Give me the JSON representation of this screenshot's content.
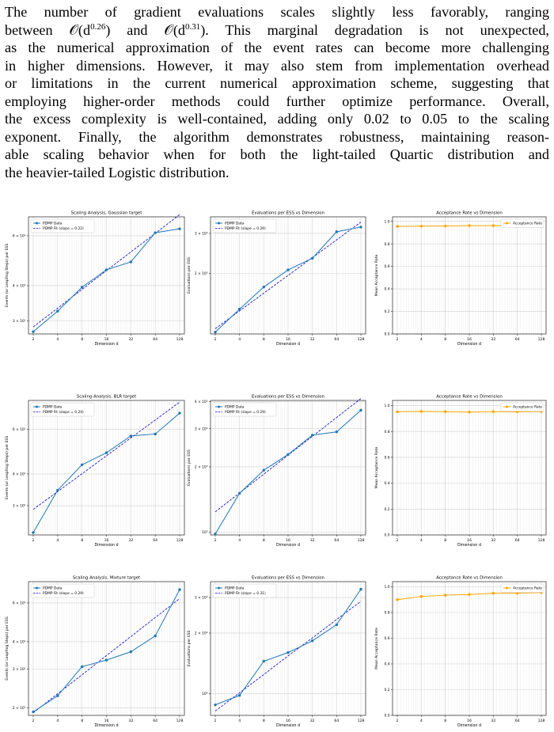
{
  "paragraph": {
    "lines": [
      {
        "parts": [
          {
            "t": "The number of gradient evaluations scales slightly less favorably, ranging"
          }
        ]
      },
      {
        "parts": [
          {
            "t": "between 𝒪(d"
          },
          {
            "sup": "0.26"
          },
          {
            "t": ") and 𝒪(d"
          },
          {
            "sup": "0.31"
          },
          {
            "t": "). This marginal degradation is not unexpected,"
          }
        ]
      },
      {
        "parts": [
          {
            "t": "as the numerical approximation of the event rates can become more challenging"
          }
        ]
      },
      {
        "parts": [
          {
            "t": "in higher dimensions. However, it may also stem from implementation overhead"
          }
        ]
      },
      {
        "parts": [
          {
            "t": "or limitations in the current numerical approximation scheme, suggesting that"
          }
        ]
      },
      {
        "parts": [
          {
            "t": "employing higher-order methods could further optimize performance. Overall,"
          }
        ]
      },
      {
        "parts": [
          {
            "t": "the excess complexity is well-contained, adding only 0.02 to 0.05 to the scaling"
          }
        ]
      },
      {
        "parts": [
          {
            "t": "exponent. Finally, the algorithm demonstrates robustness, maintaining reason-"
          }
        ]
      },
      {
        "parts": [
          {
            "t": "able scaling behavior when for both the light-tailed Quartic distribution and"
          }
        ]
      },
      {
        "parts": [
          {
            "t": "the heavier-tailed Logistic distribution."
          }
        ]
      }
    ]
  },
  "colors": {
    "series": "#1f77b4",
    "fit": "#0000cc",
    "acceptance": "#ffa500",
    "grid": "#d0d0d0"
  },
  "chart_data": [
    {
      "type": "line",
      "title": "Scaling Analysis, Gaussian target",
      "xlabel": "Dimension d",
      "ylabel": "Events (or Leapfrog Steps) per ESS",
      "xscale": "log2",
      "yscale": "log",
      "x": [
        2,
        4,
        8,
        16,
        32,
        64,
        128
      ],
      "ylim": [
        27,
        70
      ],
      "yticks": [
        {
          "v": 30,
          "label": "3 × 10¹"
        },
        {
          "v": 40,
          "label": "4 × 10¹"
        },
        {
          "v": 60,
          "label": "6 × 10¹"
        }
      ],
      "series": [
        {
          "name": "PDMP Data",
          "values": [
            27.5,
            32.5,
            39.5,
            45.5,
            48.5,
            61.5,
            63.5
          ]
        }
      ],
      "fit": {
        "name": "PDMP Fit (slope = 0.22)",
        "values": [
          28.6,
          33.3,
          38.8,
          45.2,
          52.6,
          61.2,
          71.3
        ]
      },
      "legend": "top-left",
      "grid": true
    },
    {
      "type": "line",
      "title": "Evaluations per ESS vs Dimension",
      "xlabel": "Dimension d",
      "ylabel": "Evaluations per ESS",
      "xscale": "log2",
      "yscale": "log",
      "x": [
        2,
        4,
        8,
        16,
        32,
        64,
        128
      ],
      "ylim": [
        1080,
        3550
      ],
      "yticks": [
        {
          "v": 2000,
          "label": "2 × 10³"
        },
        {
          "v": 3000,
          "label": "3 × 10³"
        }
      ],
      "series": [
        {
          "name": "PDMP Data",
          "values": [
            1100,
            1390,
            1740,
            2070,
            2330,
            3050,
            3200
          ]
        }
      ],
      "fit": {
        "name": "PDMP Fit (slope = 0.26)",
        "values": [
          1140,
          1365,
          1635,
          1958,
          2345,
          2810,
          3365
        ]
      },
      "legend": "top-left",
      "grid": true
    },
    {
      "type": "line",
      "title": "Acceptance Rate vs Dimension",
      "xlabel": "Dimension d",
      "ylabel": "Mean Acceptance Rate",
      "xscale": "log2",
      "yscale": "linear",
      "x": [
        2,
        4,
        8,
        16,
        32,
        64,
        128
      ],
      "ylim": [
        0,
        1.04
      ],
      "yticks": [
        {
          "v": 0,
          "label": "0.0"
        },
        {
          "v": 0.2,
          "label": "0.2"
        },
        {
          "v": 0.4,
          "label": "0.4"
        },
        {
          "v": 0.6,
          "label": "0.6"
        },
        {
          "v": 0.8,
          "label": "0.8"
        },
        {
          "v": 1.0,
          "label": "1.0"
        }
      ],
      "series": [
        {
          "name": "Acceptance Rate",
          "values": [
            0.955,
            0.957,
            0.958,
            0.962,
            0.962,
            0.962,
            0.965
          ]
        }
      ],
      "legend": "top-right",
      "grid": true
    },
    {
      "type": "line",
      "title": "Scaling Analysis, BLR target",
      "xlabel": "Dimension d",
      "ylabel": "Events (or Leapfrog Steps) per ESS",
      "xscale": "log2",
      "yscale": "log",
      "x": [
        2,
        4,
        8,
        16,
        32,
        64,
        128
      ],
      "ylim": [
        23,
        78
      ],
      "yticks": [
        {
          "v": 30,
          "label": "3 × 10¹"
        },
        {
          "v": 40,
          "label": "4 × 10¹"
        },
        {
          "v": 60,
          "label": "6 × 10¹"
        }
      ],
      "series": [
        {
          "name": "PDMP Data",
          "values": [
            23.5,
            34.5,
            43.5,
            48.5,
            56.5,
            57.5,
            69.5
          ]
        }
      ],
      "fit": {
        "name": "PDMP Fit (slope = 0.24)",
        "values": [
          29.0,
          34.1,
          40.1,
          47.2,
          55.5,
          65.3,
          76.8
        ]
      },
      "legend": "top-left",
      "grid": true
    },
    {
      "type": "line",
      "title": "Evaluations per ESS vs Dimension",
      "xlabel": "Dimension d",
      "ylabel": "Evaluations per ESS",
      "xscale": "log2",
      "yscale": "log",
      "x": [
        2,
        4,
        8,
        16,
        32,
        64,
        128
      ],
      "ylim": [
        970,
        4050
      ],
      "yticks": [
        {
          "v": 1000,
          "label": "10³"
        },
        {
          "v": 2000,
          "label": "2 × 10³"
        },
        {
          "v": 3000,
          "label": "3 × 10³"
        },
        {
          "v": 4000,
          "label": "4 × 10³"
        }
      ],
      "series": [
        {
          "name": "PDMP Data",
          "values": [
            980,
            1510,
            1930,
            2280,
            2800,
            2900,
            3650
          ]
        }
      ],
      "fit": {
        "name": "PDMP Fit (slope = 0.29)",
        "values": [
          1240,
          1515,
          1850,
          2265,
          2765,
          3380,
          4130
        ]
      },
      "legend": "top-left",
      "grid": true
    },
    {
      "type": "line",
      "title": "Acceptance Rate vs Dimension",
      "xlabel": "Dimension d",
      "ylabel": "Mean Acceptance Rate",
      "xscale": "log2",
      "yscale": "linear",
      "x": [
        2,
        4,
        8,
        16,
        32,
        64,
        128
      ],
      "ylim": [
        0,
        1.04
      ],
      "yticks": [
        {
          "v": 0,
          "label": "0.0"
        },
        {
          "v": 0.2,
          "label": "0.2"
        },
        {
          "v": 0.4,
          "label": "0.4"
        },
        {
          "v": 0.6,
          "label": "0.6"
        },
        {
          "v": 0.8,
          "label": "0.8"
        },
        {
          "v": 1.0,
          "label": "1.0"
        }
      ],
      "series": [
        {
          "name": "Acceptance Rate",
          "values": [
            0.952,
            0.955,
            0.953,
            0.95,
            0.953,
            0.952,
            0.954
          ]
        }
      ],
      "legend": "top-right",
      "grid": true
    },
    {
      "type": "line",
      "title": "Scaling Analysis, Mixture target",
      "xlabel": "Dimension d",
      "ylabel": "Events (or Leapfrog Steps) per ESS",
      "xscale": "log2",
      "yscale": "log",
      "x": [
        2,
        4,
        8,
        16,
        32,
        64,
        128
      ],
      "ylim": [
        18.5,
        75
      ],
      "yticks": [
        {
          "v": 20,
          "label": "2 × 10¹"
        },
        {
          "v": 30,
          "label": "3 × 10¹"
        },
        {
          "v": 40,
          "label": "4 × 10¹"
        },
        {
          "v": 60,
          "label": "6 × 10¹"
        }
      ],
      "series": [
        {
          "name": "PDMP Data",
          "values": [
            19.2,
            22.7,
            30.8,
            33.0,
            36.0,
            42.5,
            69.0
          ]
        }
      ],
      "fit": {
        "name": "PDMP Fit (slope = 0.29)",
        "values": [
          19.0,
          23.2,
          28.3,
          34.6,
          42.2,
          51.5,
          62.8
        ]
      },
      "legend": "top-left",
      "grid": true
    },
    {
      "type": "line",
      "title": "Evaluations per ESS vs Dimension",
      "xlabel": "Dimension d",
      "ylabel": "Evaluations per ESS",
      "xscale": "log2",
      "yscale": "log",
      "x": [
        2,
        4,
        8,
        16,
        32,
        64,
        128
      ],
      "ylim": [
        7800,
        36000
      ],
      "yticks": [
        {
          "v": 10000,
          "label": "10⁴"
        },
        {
          "v": 20000,
          "label": "2 × 10⁴"
        },
        {
          "v": 30000,
          "label": "3 × 10⁴"
        }
      ],
      "series": [
        {
          "name": "PDMP Data",
          "values": [
            8800,
            9800,
            14500,
            16000,
            18300,
            22000,
            33000
          ]
        }
      ],
      "fit": {
        "name": "PDMP Fit (slope = 0.31)",
        "values": [
          8200,
          10100,
          12450,
          15400,
          18900,
          23350,
          28750
        ]
      },
      "legend": "top-left",
      "grid": true
    },
    {
      "type": "line",
      "title": "Acceptance Rate vs Dimension",
      "xlabel": "Dimension d",
      "ylabel": "Mean Acceptance Rate",
      "xscale": "log2",
      "yscale": "linear",
      "x": [
        2,
        4,
        8,
        16,
        32,
        64,
        128
      ],
      "ylim": [
        0,
        1.04
      ],
      "yticks": [
        {
          "v": 0,
          "label": "0.0"
        },
        {
          "v": 0.2,
          "label": "0.2"
        },
        {
          "v": 0.4,
          "label": "0.4"
        },
        {
          "v": 0.6,
          "label": "0.6"
        },
        {
          "v": 0.8,
          "label": "0.8"
        },
        {
          "v": 1.0,
          "label": "1.0"
        }
      ],
      "series": [
        {
          "name": "Acceptance Rate",
          "values": [
            0.9,
            0.925,
            0.935,
            0.94,
            0.95,
            0.95,
            0.955
          ]
        }
      ],
      "legend": "top-right",
      "grid": true
    }
  ]
}
